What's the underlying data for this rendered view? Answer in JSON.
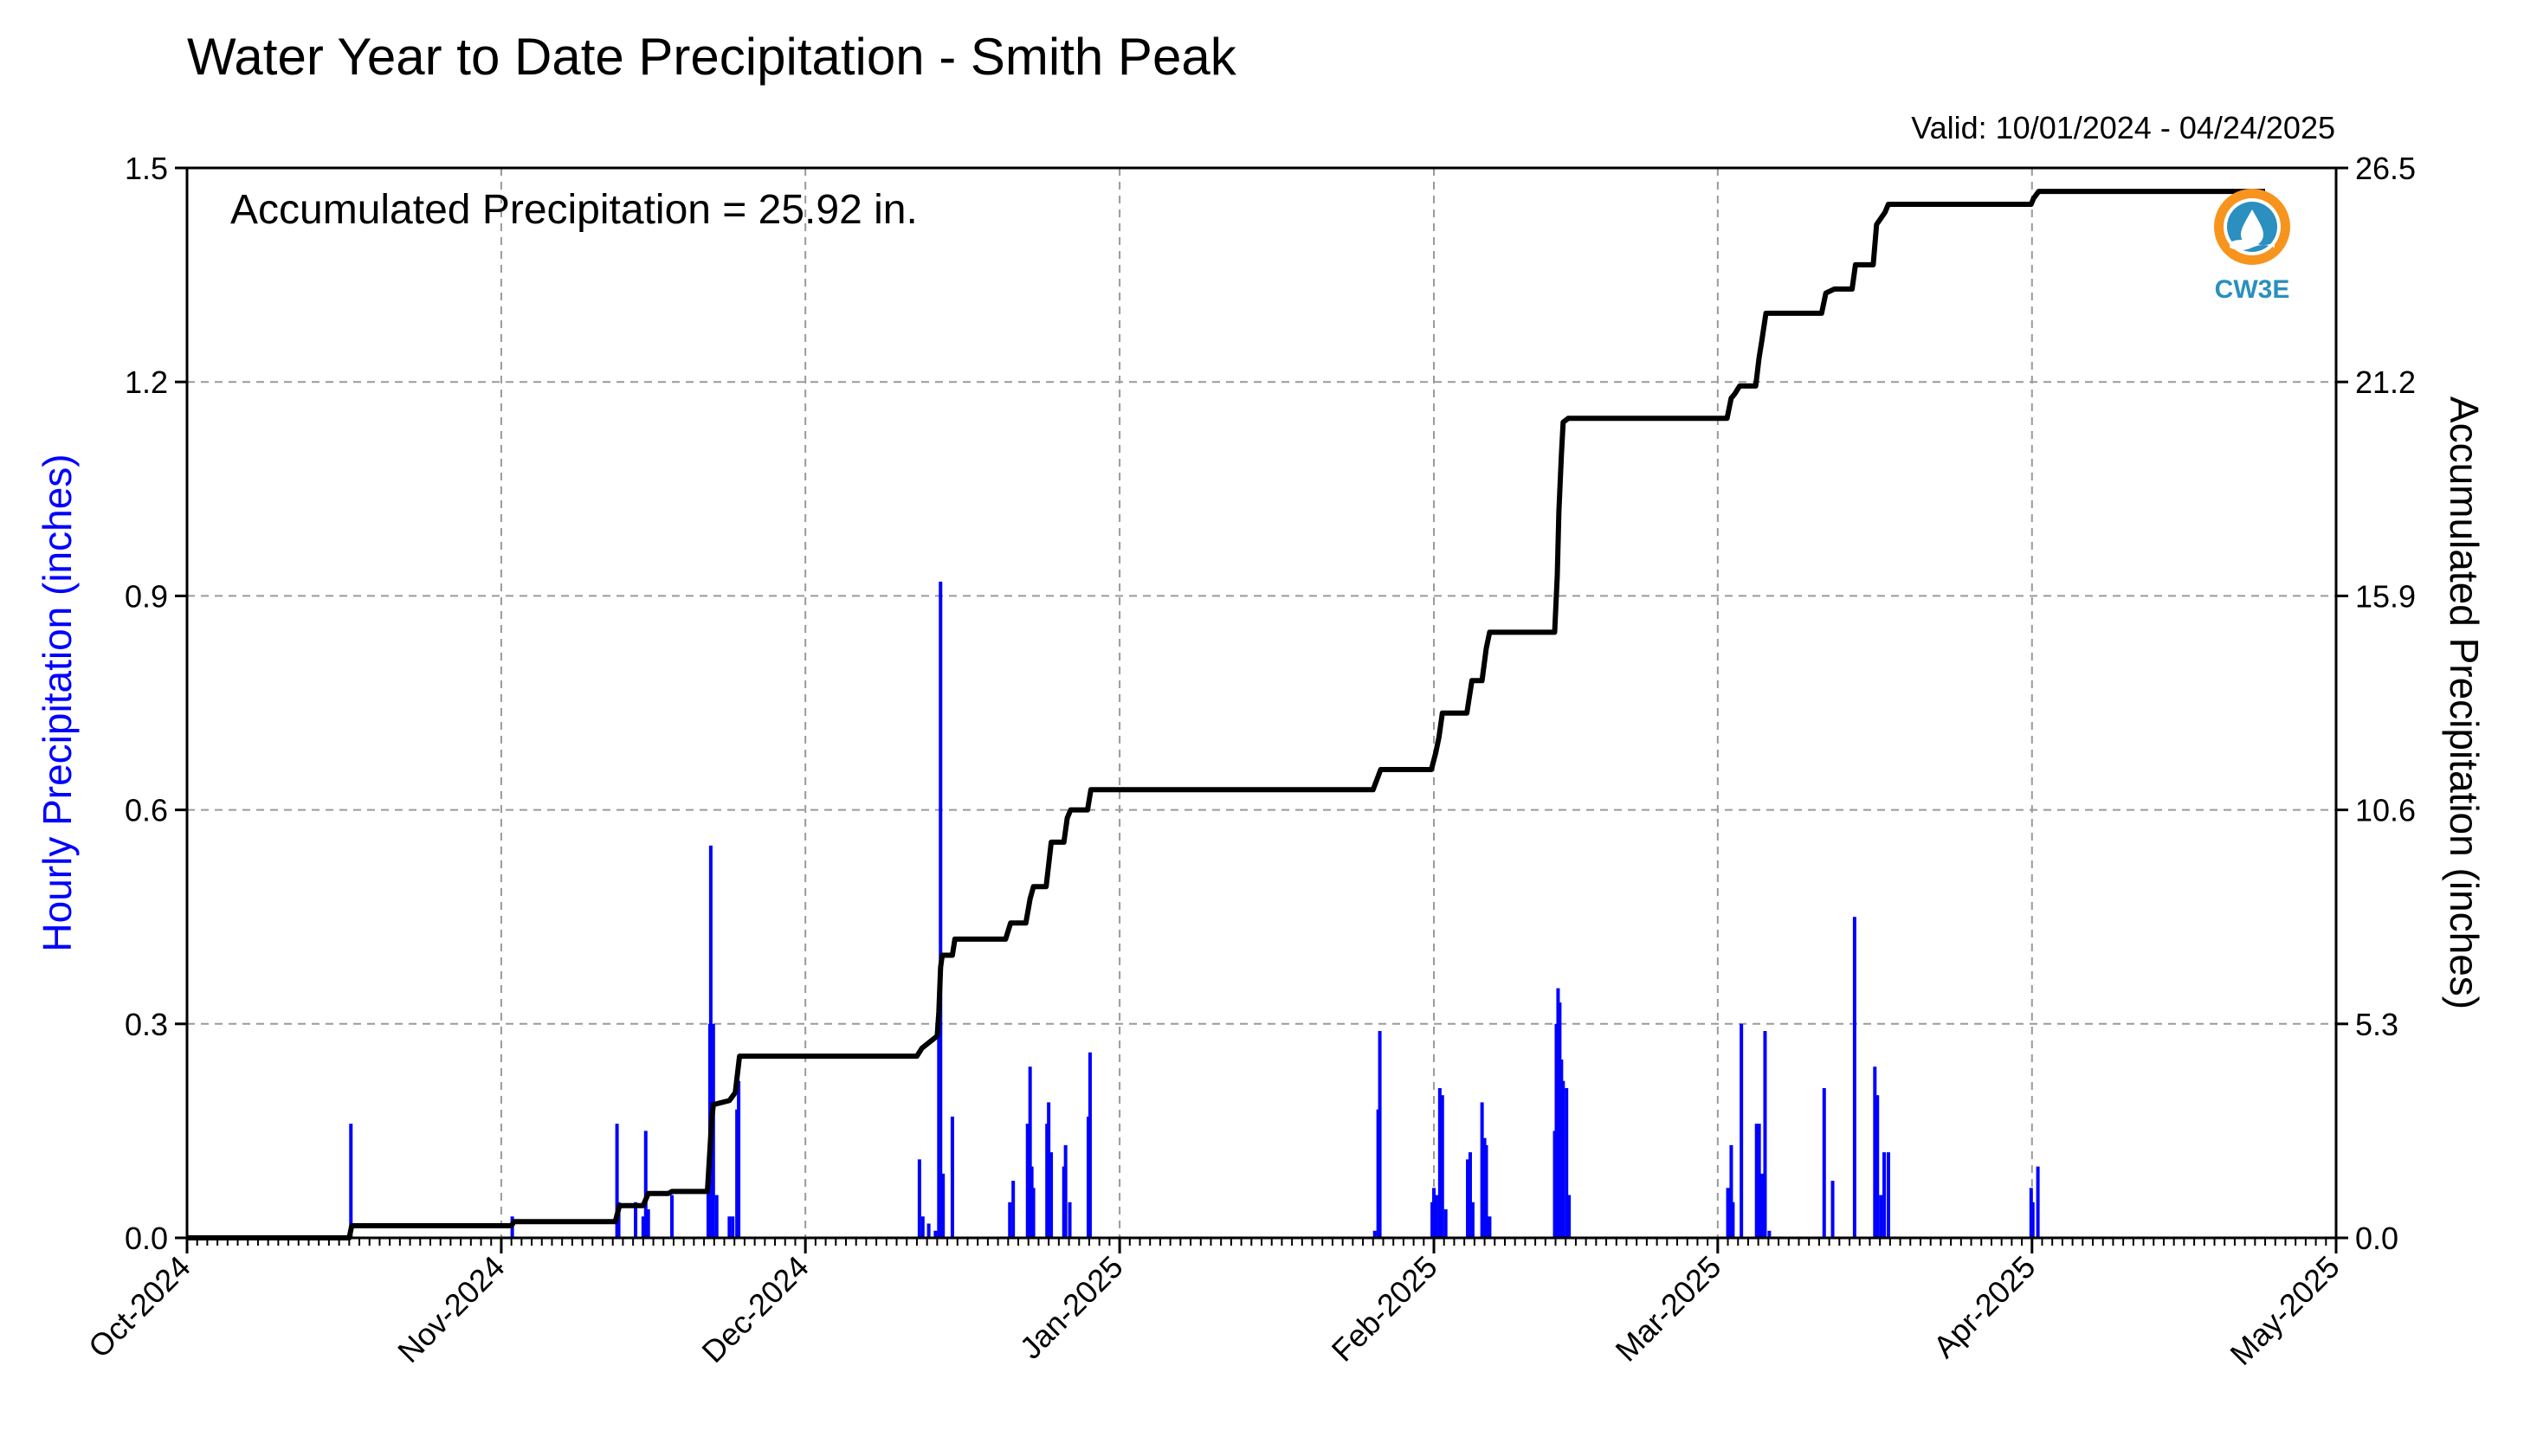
{
  "title": "Water Year to Date Precipitation - Smith Peak",
  "valid_text": "Valid: 10/01/2024 - 04/24/2025",
  "annotation": "Accumulated Precipitation = 25.92 in.",
  "logo": {
    "text": "CW3E",
    "icon": "cw3e-logo-icon",
    "ring_color": "#f7941d",
    "drop_color": "#2b8fbf"
  },
  "colors": {
    "hourly": "#0000ff",
    "accumulated": "#000000",
    "grid": "#9a9a9a"
  },
  "chart_data": {
    "type": "bar",
    "x_axis": {
      "type": "date",
      "range": [
        "2024-10-01",
        "2025-05-01"
      ],
      "tick_labels": [
        "Oct-2024",
        "Nov-2024",
        "Dec-2024",
        "Jan-2025",
        "Feb-2025",
        "Mar-2025",
        "Apr-2025",
        "May-2025"
      ],
      "tick_dates": [
        "2024-10-01",
        "2024-11-01",
        "2024-12-01",
        "2025-01-01",
        "2025-02-01",
        "2025-03-01",
        "2025-04-01",
        "2025-05-01"
      ],
      "minor_ticks": "daily"
    },
    "y_left": {
      "label": "Hourly Precipitation (inches)",
      "range": [
        0,
        1.5
      ],
      "tick_labels": [
        "0.0",
        "0.3",
        "0.6",
        "0.9",
        "1.2",
        "1.5"
      ],
      "ticks": [
        0,
        0.3,
        0.6,
        0.9,
        1.2,
        1.5
      ],
      "color": "#0000ff"
    },
    "y_right": {
      "label": "Accumulated Precipitation (inches)",
      "range": [
        0,
        26.5
      ],
      "tick_labels": [
        "0.0",
        "5.3",
        "10.6",
        "15.9",
        "21.2",
        "26.5"
      ],
      "ticks": [
        0,
        5.3,
        10.6,
        15.9,
        21.2,
        26.5
      ]
    },
    "grid": true,
    "series": [
      {
        "type": "bar",
        "axis": "left",
        "values_inches": [
          [
            "2024-10-17 04:00",
            0.16
          ],
          [
            "2024-11-02 02:00",
            0.03
          ],
          [
            "2024-11-12 10:00",
            0.16
          ],
          [
            "2024-11-12 14:00",
            0.05
          ],
          [
            "2024-11-14 06:00",
            0.05
          ],
          [
            "2024-11-15 00:00",
            0.03
          ],
          [
            "2024-11-15 06:00",
            0.15
          ],
          [
            "2024-11-15 12:00",
            0.04
          ],
          [
            "2024-11-17 20:00",
            0.06
          ],
          [
            "2024-11-21 10:00",
            0.1
          ],
          [
            "2024-11-21 14:00",
            0.3
          ],
          [
            "2024-11-21 16:00",
            0.55
          ],
          [
            "2024-11-21 22:00",
            0.3
          ],
          [
            "2024-11-22 06:00",
            0.06
          ],
          [
            "2024-11-23 12:00",
            0.03
          ],
          [
            "2024-11-23 20:00",
            0.03
          ],
          [
            "2024-11-24 06:00",
            0.18
          ],
          [
            "2024-11-24 10:00",
            0.22
          ],
          [
            "2024-12-12 06:00",
            0.11
          ],
          [
            "2024-12-12 14:00",
            0.03
          ],
          [
            "2024-12-13 04:00",
            0.02
          ],
          [
            "2024-12-13 20:00",
            0.01
          ],
          [
            "2024-12-14 04:00",
            0.3
          ],
          [
            "2024-12-14 08:00",
            0.92
          ],
          [
            "2024-12-14 14:00",
            0.09
          ],
          [
            "2024-12-15 12:00",
            0.17
          ],
          [
            "2024-12-21 04:00",
            0.05
          ],
          [
            "2024-12-21 12:00",
            0.08
          ],
          [
            "2024-12-22 22:00",
            0.16
          ],
          [
            "2024-12-23 04:00",
            0.24
          ],
          [
            "2024-12-23 08:00",
            0.1
          ],
          [
            "2024-12-23 12:00",
            0.07
          ],
          [
            "2024-12-24 20:00",
            0.16
          ],
          [
            "2024-12-25 00:00",
            0.19
          ],
          [
            "2024-12-25 06:00",
            0.12
          ],
          [
            "2024-12-26 12:00",
            0.1
          ],
          [
            "2024-12-26 16:00",
            0.13
          ],
          [
            "2024-12-27 02:00",
            0.05
          ],
          [
            "2024-12-28 22:00",
            0.17
          ],
          [
            "2024-12-29 02:00",
            0.26
          ],
          [
            "2025-01-26 04:00",
            0.01
          ],
          [
            "2025-01-26 12:00",
            0.18
          ],
          [
            "2025-01-26 16:00",
            0.29
          ],
          [
            "2025-01-31 20:00",
            0.05
          ],
          [
            "2025-02-01 00:00",
            0.07
          ],
          [
            "2025-02-01 06:00",
            0.06
          ],
          [
            "2025-02-01 14:00",
            0.21
          ],
          [
            "2025-02-01 20:00",
            0.2
          ],
          [
            "2025-02-02 04:00",
            0.04
          ],
          [
            "2025-02-04 08:00",
            0.11
          ],
          [
            "2025-02-04 14:00",
            0.12
          ],
          [
            "2025-02-04 20:00",
            0.05
          ],
          [
            "2025-02-05 18:00",
            0.19
          ],
          [
            "2025-02-06 00:00",
            0.14
          ],
          [
            "2025-02-06 04:00",
            0.13
          ],
          [
            "2025-02-06 12:00",
            0.03
          ],
          [
            "2025-02-12 22:00",
            0.15
          ],
          [
            "2025-02-13 02:00",
            0.3
          ],
          [
            "2025-02-13 06:00",
            0.35
          ],
          [
            "2025-02-13 10:00",
            0.33
          ],
          [
            "2025-02-13 14:00",
            0.25
          ],
          [
            "2025-02-13 18:00",
            0.22
          ],
          [
            "2025-02-14 02:00",
            0.21
          ],
          [
            "2025-02-14 08:00",
            0.06
          ],
          [
            "2025-03-02 00:00",
            0.07
          ],
          [
            "2025-03-02 08:00",
            0.13
          ],
          [
            "2025-03-02 12:00",
            0.05
          ],
          [
            "2025-03-03 08:00",
            0.3
          ],
          [
            "2025-03-04 20:00",
            0.16
          ],
          [
            "2025-03-05 02:00",
            0.16
          ],
          [
            "2025-03-05 08:00",
            0.09
          ],
          [
            "2025-03-05 16:00",
            0.29
          ],
          [
            "2025-03-06 02:00",
            0.01
          ],
          [
            "2025-03-11 12:00",
            0.21
          ],
          [
            "2025-03-12 08:00",
            0.08
          ],
          [
            "2025-03-14 12:00",
            0.45
          ],
          [
            "2025-03-16 12:00",
            0.24
          ],
          [
            "2025-03-16 18:00",
            0.2
          ],
          [
            "2025-03-17 02:00",
            0.06
          ],
          [
            "2025-03-17 10:00",
            0.12
          ],
          [
            "2025-03-17 20:00",
            0.12
          ],
          [
            "2025-03-31 22:00",
            0.07
          ],
          [
            "2025-04-01 02:00",
            0.05
          ],
          [
            "2025-04-01 14:00",
            0.1
          ]
        ]
      },
      {
        "type": "line",
        "axis": "right",
        "values_inches": [
          [
            "2024-10-01 00:00",
            0.0
          ],
          [
            "2024-10-17 00:00",
            0.0
          ],
          [
            "2024-10-17 06:00",
            0.3
          ],
          [
            "2024-11-02 00:00",
            0.3
          ],
          [
            "2024-11-02 06:00",
            0.4
          ],
          [
            "2024-11-12 06:00",
            0.4
          ],
          [
            "2024-11-12 16:00",
            0.8
          ],
          [
            "2024-11-15 00:00",
            0.8
          ],
          [
            "2024-11-15 12:00",
            1.1
          ],
          [
            "2024-11-17 12:00",
            1.1
          ],
          [
            "2024-11-17 20:00",
            1.15
          ],
          [
            "2024-11-21 08:00",
            1.15
          ],
          [
            "2024-11-21 18:00",
            2.9
          ],
          [
            "2024-11-21 22:00",
            3.3
          ],
          [
            "2024-11-23 12:00",
            3.4
          ],
          [
            "2024-11-24 02:00",
            3.6
          ],
          [
            "2024-11-24 12:00",
            4.5
          ],
          [
            "2024-12-12 00:00",
            4.5
          ],
          [
            "2024-12-12 12:00",
            4.7
          ],
          [
            "2024-12-13 12:00",
            4.9
          ],
          [
            "2024-12-14 00:00",
            5.0
          ],
          [
            "2024-12-14 04:00",
            5.6
          ],
          [
            "2024-12-14 08:00",
            6.7
          ],
          [
            "2024-12-14 12:00",
            7.0
          ],
          [
            "2024-12-15 12:00",
            7.0
          ],
          [
            "2024-12-15 18:00",
            7.4
          ],
          [
            "2024-12-20 18:00",
            7.4
          ],
          [
            "2024-12-21 06:00",
            7.8
          ],
          [
            "2024-12-22 18:00",
            7.8
          ],
          [
            "2024-12-23 04:00",
            8.4
          ],
          [
            "2024-12-23 12:00",
            8.7
          ],
          [
            "2024-12-24 18:00",
            8.7
          ],
          [
            "2024-12-25 06:00",
            9.8
          ],
          [
            "2024-12-26 12:00",
            9.8
          ],
          [
            "2024-12-26 20:00",
            10.4
          ],
          [
            "2024-12-27 04:00",
            10.6
          ],
          [
            "2024-12-28 20:00",
            10.6
          ],
          [
            "2024-12-29 04:00",
            11.1
          ],
          [
            "2025-01-26 00:00",
            11.1
          ],
          [
            "2025-01-26 18:00",
            11.6
          ],
          [
            "2025-01-31 18:00",
            11.6
          ],
          [
            "2025-02-01 04:00",
            12.0
          ],
          [
            "2025-02-01 12:00",
            12.4
          ],
          [
            "2025-02-01 20:00",
            13.0
          ],
          [
            "2025-02-04 06:00",
            13.0
          ],
          [
            "2025-02-04 18:00",
            13.8
          ],
          [
            "2025-02-05 18:00",
            13.8
          ],
          [
            "2025-02-06 04:00",
            14.6
          ],
          [
            "2025-02-06 12:00",
            15.0
          ],
          [
            "2025-02-12 22:00",
            15.0
          ],
          [
            "2025-02-13 04:00",
            16.4
          ],
          [
            "2025-02-13 08:00",
            18.0
          ],
          [
            "2025-02-13 14:00",
            19.4
          ],
          [
            "2025-02-13 18:00",
            20.2
          ],
          [
            "2025-02-14 06:00",
            20.3
          ],
          [
            "2025-03-01 22:00",
            20.3
          ],
          [
            "2025-03-02 08:00",
            20.8
          ],
          [
            "2025-03-02 16:00",
            20.9
          ],
          [
            "2025-03-03 04:00",
            21.1
          ],
          [
            "2025-03-04 18:00",
            21.1
          ],
          [
            "2025-03-05 02:00",
            21.8
          ],
          [
            "2025-03-05 08:00",
            22.2
          ],
          [
            "2025-03-05 18:00",
            22.9
          ],
          [
            "2025-03-11 06:00",
            22.9
          ],
          [
            "2025-03-11 16:00",
            23.4
          ],
          [
            "2025-03-12 12:00",
            23.5
          ],
          [
            "2025-03-14 06:00",
            23.5
          ],
          [
            "2025-03-14 14:00",
            24.1
          ],
          [
            "2025-03-16 08:00",
            24.1
          ],
          [
            "2025-03-16 16:00",
            25.1
          ],
          [
            "2025-03-17 12:00",
            25.4
          ],
          [
            "2025-03-17 20:00",
            25.6
          ],
          [
            "2025-03-31 22:00",
            25.6
          ],
          [
            "2025-04-01 04:00",
            25.75
          ],
          [
            "2025-04-01 16:00",
            25.92
          ],
          [
            "2025-04-24 00:00",
            25.92
          ]
        ]
      }
    ]
  }
}
